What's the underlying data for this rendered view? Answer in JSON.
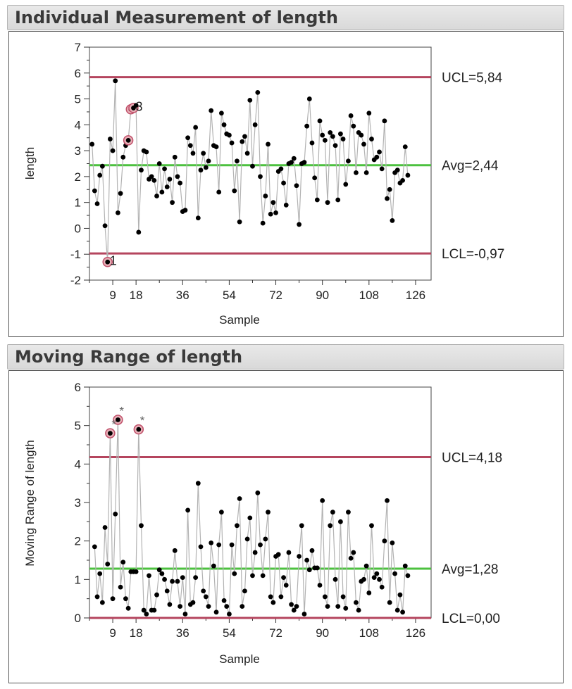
{
  "panels": [
    {
      "title": "Individual Measurement of length"
    },
    {
      "title": "Moving Range of length"
    }
  ],
  "chart_data": [
    {
      "type": "line",
      "title": "Individual Measurement of length",
      "xlabel": "Sample",
      "ylabel": "length",
      "xlim": [
        0,
        132
      ],
      "ylim": [
        -2,
        7
      ],
      "x_ticks": [
        9,
        18,
        36,
        54,
        72,
        90,
        108,
        126
      ],
      "y_ticks": [
        -2,
        -1,
        0,
        1,
        2,
        3,
        4,
        5,
        6,
        7
      ],
      "control_lines": [
        {
          "name": "UCL",
          "value": 5.84,
          "label": "UCL=5,84",
          "color": "#b5455e"
        },
        {
          "name": "Avg",
          "value": 2.44,
          "label": "Avg=2,44",
          "color": "#4cc13f"
        },
        {
          "name": "LCL",
          "value": -0.97,
          "label": "LCL=-0,97",
          "color": "#b5455e"
        }
      ],
      "flagged": [
        {
          "x": 7,
          "label": "1"
        },
        {
          "x": 15,
          "label": ""
        },
        {
          "x": 16,
          "label": ""
        },
        {
          "x": 17,
          "label": "3"
        }
      ],
      "series": [
        {
          "values": [
            3.25,
            1.45,
            0.95,
            2.05,
            2.4,
            0.1,
            -1.3,
            3.45,
            3.0,
            5.7,
            0.6,
            1.35,
            2.75,
            3.2,
            3.4,
            4.6,
            4.65,
            4.75,
            -0.15,
            2.25,
            3.0,
            2.95,
            1.9,
            2.0,
            1.85,
            1.25,
            2.5,
            1.4,
            2.3,
            1.6,
            1.9,
            1.0,
            2.75,
            2.0,
            1.75,
            0.65,
            0.7,
            3.5,
            3.2,
            2.9,
            3.9,
            0.4,
            2.25,
            2.9,
            2.35,
            2.6,
            4.55,
            3.2,
            3.15,
            1.4,
            4.45,
            4.0,
            3.65,
            3.6,
            3.3,
            1.45,
            2.6,
            0.25,
            3.35,
            3.55,
            2.9,
            4.95,
            2.4,
            4.0,
            5.25,
            2.0,
            0.2,
            1.25,
            3.25,
            0.55,
            1.0,
            0.6,
            2.2,
            2.3,
            1.75,
            0.9,
            2.5,
            2.55,
            2.7,
            1.65,
            0.15,
            2.5,
            2.55,
            3.95,
            5.0,
            3.3,
            1.95,
            1.1,
            4.15,
            3.6,
            3.4,
            1.0,
            3.7,
            3.55,
            3.2,
            1.1,
            3.65,
            3.45,
            1.7,
            2.6,
            4.35,
            3.95,
            2.15,
            3.7,
            3.6,
            3.25,
            2.15,
            4.45,
            3.45,
            2.65,
            2.75,
            2.95,
            2.3,
            4.15,
            1.15,
            1.5,
            0.3,
            2.15,
            2.25,
            1.75,
            1.85,
            3.15,
            2.05
          ]
        }
      ]
    },
    {
      "type": "line",
      "title": "Moving Range of length",
      "xlabel": "Sample",
      "ylabel": "Moving Range of length",
      "xlim": [
        0,
        132
      ],
      "ylim": [
        0,
        6
      ],
      "x_ticks": [
        9,
        18,
        36,
        54,
        72,
        90,
        108,
        126
      ],
      "y_ticks": [
        0,
        1,
        2,
        3,
        4,
        5,
        6
      ],
      "control_lines": [
        {
          "name": "UCL",
          "value": 4.18,
          "label": "UCL=4,18",
          "color": "#b5455e"
        },
        {
          "name": "Avg",
          "value": 1.28,
          "label": "Avg=1,28",
          "color": "#4cc13f"
        },
        {
          "name": "LCL",
          "value": 0.0,
          "label": "LCL=0,00",
          "color": "#b5455e"
        }
      ],
      "flagged": [
        {
          "x": 8,
          "label": "*"
        },
        {
          "x": 11,
          "label": "*"
        },
        {
          "x": 19,
          "label": "*"
        }
      ],
      "series": [
        {
          "start_x": 2,
          "values": [
            1.85,
            0.55,
            1.15,
            0.4,
            2.35,
            1.4,
            4.8,
            0.5,
            2.7,
            5.15,
            0.8,
            1.45,
            0.5,
            0.25,
            1.2,
            1.2,
            1.2,
            4.9,
            2.4,
            0.2,
            0.1,
            1.1,
            0.2,
            0.2,
            0.6,
            1.25,
            1.15,
            1.0,
            0.7,
            0.35,
            0.95,
            1.75,
            0.95,
            0.3,
            1.05,
            0.1,
            2.8,
            0.35,
            0.4,
            1.05,
            3.5,
            1.85,
            0.7,
            0.55,
            0.3,
            1.95,
            1.35,
            0.15,
            1.9,
            2.75,
            0.45,
            0.3,
            0.1,
            1.9,
            1.15,
            2.4,
            3.1,
            0.3,
            0.7,
            2.05,
            2.6,
            1.1,
            1.7,
            3.25,
            1.9,
            1.1,
            2.05,
            2.75,
            0.55,
            0.4,
            1.6,
            1.65,
            0.55,
            1.05,
            0.85,
            1.7,
            0.35,
            0.2,
            0.3,
            1.6,
            2.4,
            0.1,
            1.5,
            1.25,
            1.75,
            1.3,
            1.3,
            0.85,
            3.05,
            0.55,
            0.3,
            2.4,
            2.75,
            1.0,
            0.3,
            2.5,
            0.55,
            0.25,
            2.75,
            1.55,
            1.7,
            0.4,
            0.2,
            0.95,
            1.0,
            1.35,
            0.65,
            2.4,
            1.05,
            1.15,
            1.0,
            0.8,
            2.0,
            3.05,
            0.4,
            1.95,
            1.15,
            0.2,
            0.6,
            0.15,
            1.35,
            1.1
          ]
        }
      ]
    }
  ]
}
